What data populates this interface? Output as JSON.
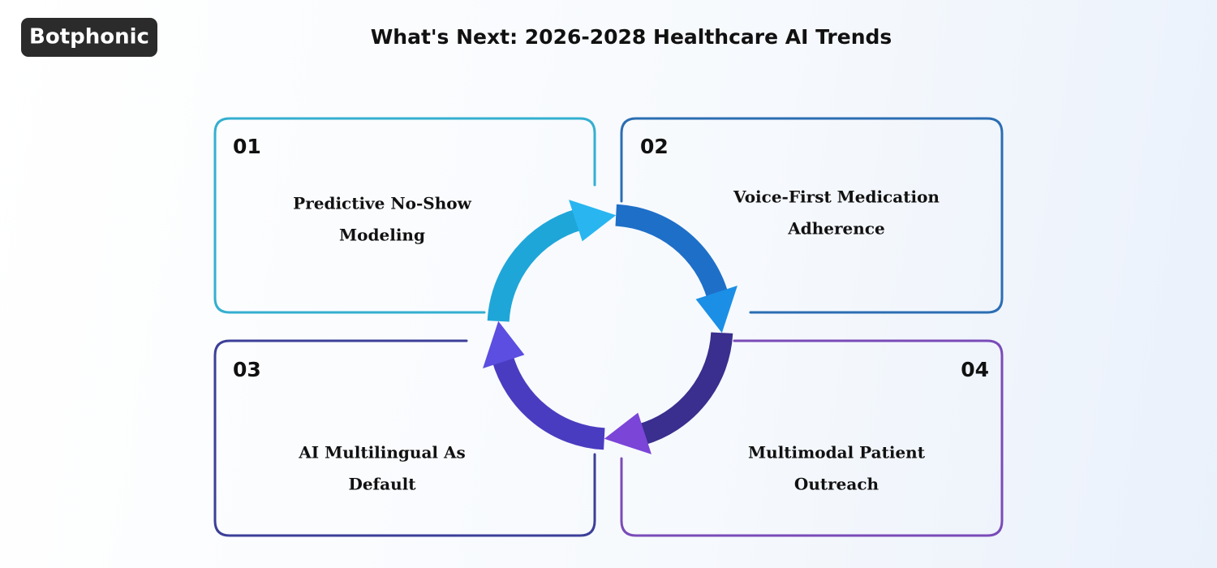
{
  "logo": "Botphonic",
  "title": "What's Next: 2026-2028 Healthcare AI Trends",
  "items": [
    {
      "number": "01",
      "label": [
        "Predictive No-Show",
        "Modeling"
      ]
    },
    {
      "number": "02",
      "label": [
        "Voice-First Medication",
        "Adherence"
      ]
    },
    {
      "number": "03",
      "label": [
        "AI Multilingual As",
        "Default"
      ]
    },
    {
      "number": "04",
      "label": [
        "Multimodal Patient",
        "Outreach"
      ]
    }
  ]
}
